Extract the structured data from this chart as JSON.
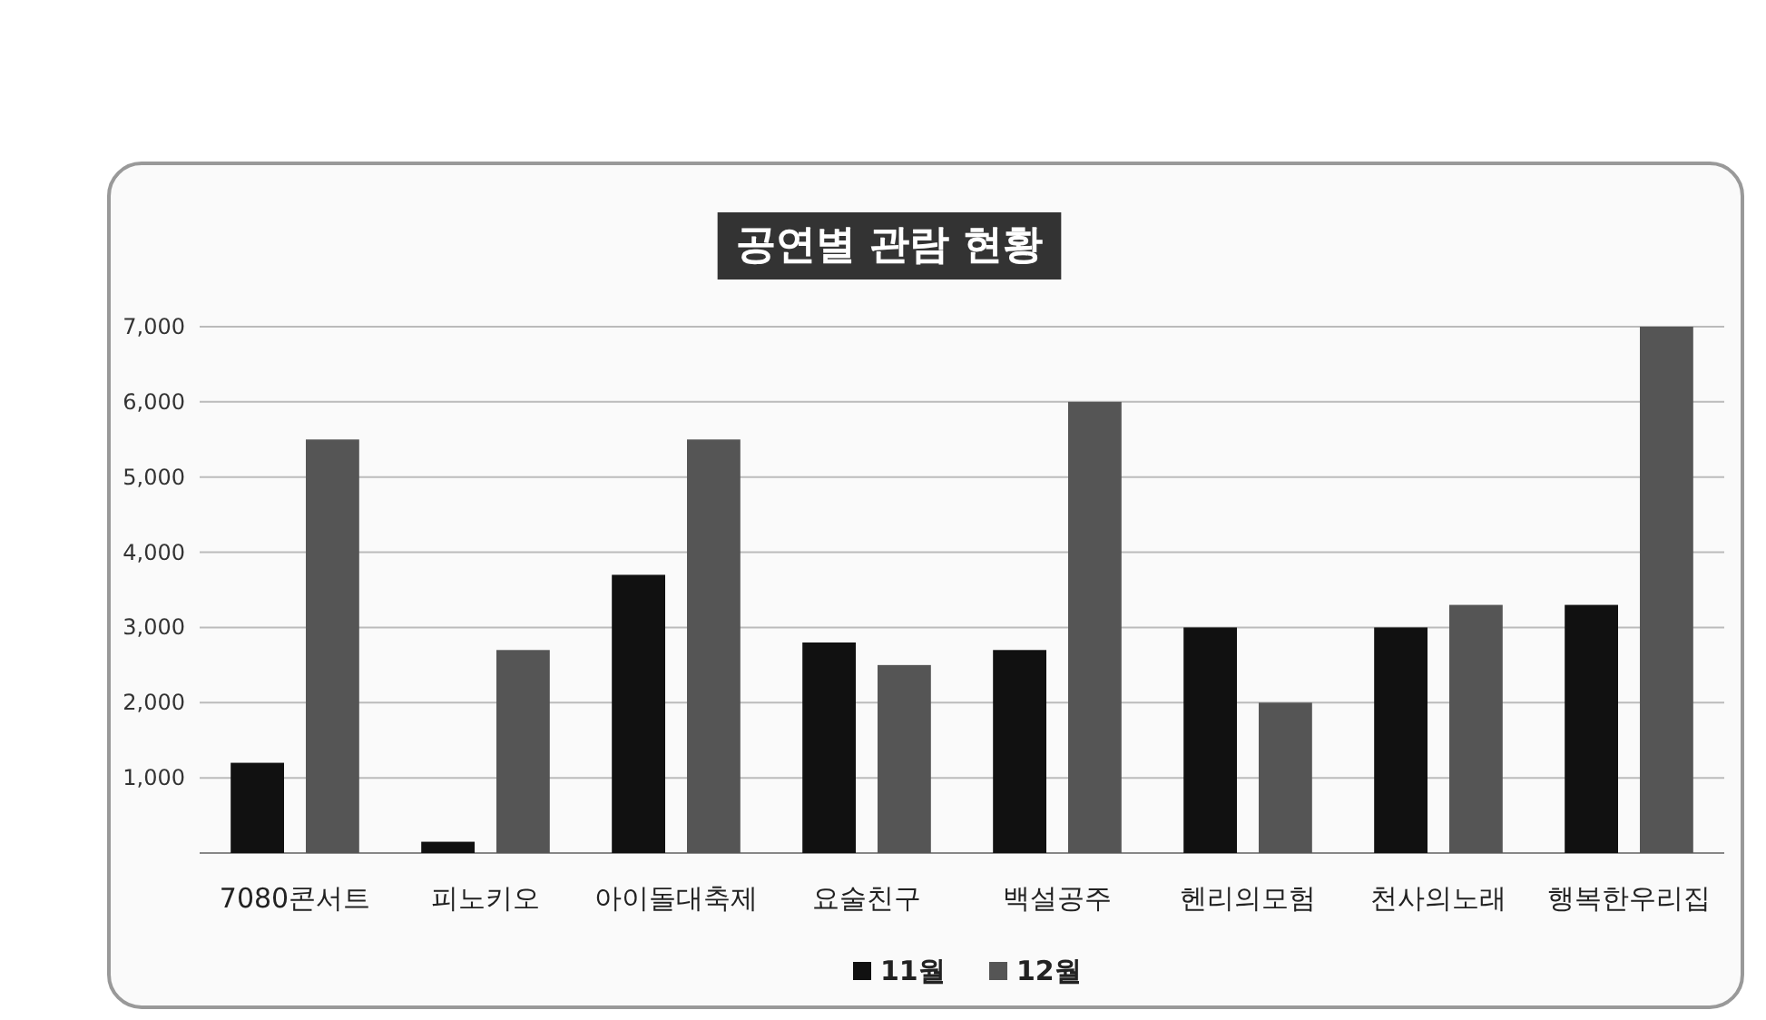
{
  "chart_data": {
    "type": "bar",
    "title": "공연별 관람 현황",
    "categories": [
      "7080콘서트",
      "피노키오",
      "아이돌대축제",
      "요술친구",
      "백설공주",
      "헨리의모험",
      "천사의노래",
      "행복한우리집"
    ],
    "series": [
      {
        "name": "11월",
        "color": "#111111",
        "values": [
          1200,
          150,
          3700,
          2800,
          2700,
          3000,
          3000,
          3300
        ]
      },
      {
        "name": "12월",
        "color": "#555555",
        "values": [
          5500,
          2700,
          5500,
          2500,
          6000,
          2000,
          3300,
          7000
        ]
      }
    ],
    "ylim": [
      0,
      7000
    ],
    "yticks": [
      {
        "value": 1000,
        "label": "1,000"
      },
      {
        "value": 2000,
        "label": "2,000"
      },
      {
        "value": 3000,
        "label": "3,000"
      },
      {
        "value": 4000,
        "label": "4,000"
      },
      {
        "value": 5000,
        "label": "5,000"
      },
      {
        "value": 6000,
        "label": "6,000"
      },
      {
        "value": 7000,
        "label": "7,000"
      }
    ],
    "grid": "y",
    "legend": "bottom"
  }
}
